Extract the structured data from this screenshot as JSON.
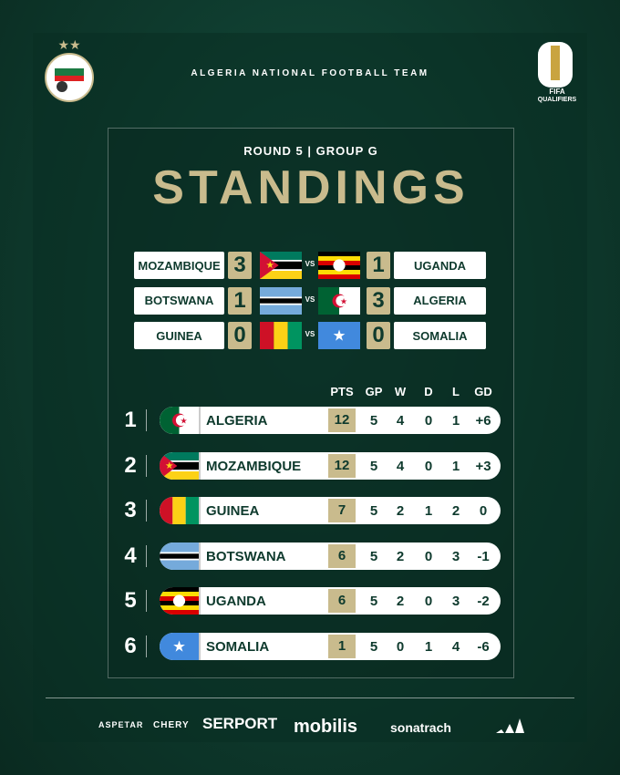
{
  "header": {
    "team": "ALGERIA NATIONAL FOOTBALL TEAM",
    "fifa": "FIFA",
    "fifa_sub": "QUALIFIERS"
  },
  "title": {
    "subtitle": "ROUND 5 | GROUP G",
    "main": "STANDINGS"
  },
  "results": {
    "vs": "VS",
    "matches": [
      {
        "home": "MOZAMBIQUE",
        "home_score": 3,
        "away_score": 1,
        "away": "UGANDA"
      },
      {
        "home": "BOTSWANA",
        "home_score": 1,
        "away_score": 3,
        "away": "ALGERIA"
      },
      {
        "home": "GUINEA",
        "home_score": 0,
        "away_score": 0,
        "away": "SOMALIA"
      }
    ]
  },
  "standings": {
    "columns": [
      "PTS",
      "GP",
      "W",
      "D",
      "L",
      "GD"
    ],
    "rows": [
      {
        "rank": 1,
        "team": "ALGERIA",
        "pts": 12,
        "gp": 5,
        "w": 4,
        "d": 0,
        "l": 1,
        "gd": "+6"
      },
      {
        "rank": 2,
        "team": "MOZAMBIQUE",
        "pts": 12,
        "gp": 5,
        "w": 4,
        "d": 0,
        "l": 1,
        "gd": "+3"
      },
      {
        "rank": 3,
        "team": "GUINEA",
        "pts": 7,
        "gp": 5,
        "w": 2,
        "d": 1,
        "l": 2,
        "gd": 0
      },
      {
        "rank": 4,
        "team": "BOTSWANA",
        "pts": 6,
        "gp": 5,
        "w": 2,
        "d": 0,
        "l": 3,
        "gd": -1
      },
      {
        "rank": 5,
        "team": "UGANDA",
        "pts": 6,
        "gp": 5,
        "w": 2,
        "d": 0,
        "l": 3,
        "gd": -2
      },
      {
        "rank": 6,
        "team": "SOMALIA",
        "pts": 1,
        "gp": 5,
        "w": 0,
        "d": 1,
        "l": 4,
        "gd": -6
      }
    ]
  },
  "sponsors": [
    "ASPETAR",
    "CHERY",
    "SERPORT",
    "mobilis",
    "sonatrach"
  ]
}
